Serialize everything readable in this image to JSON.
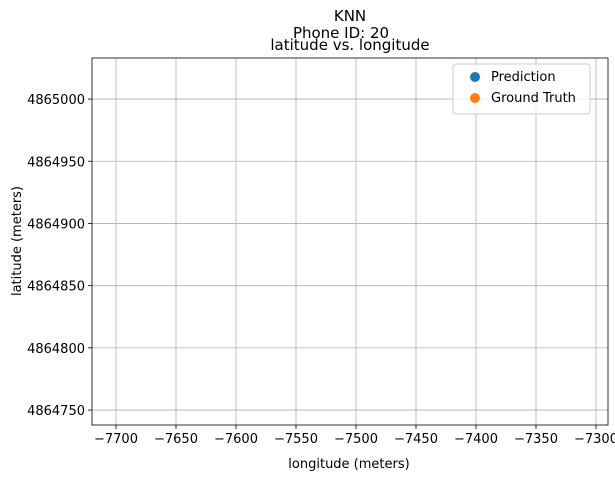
{
  "figure": {
    "suptitle_line1": "KNN",
    "suptitle_line2": "Phone ID: 20"
  },
  "chart_data": {
    "type": "scatter",
    "title": "latitude vs. longitude",
    "xlabel": "longitude (meters)",
    "ylabel": "latitude (meters)",
    "xlim": [
      -7720,
      -7290
    ],
    "ylim": [
      4864738,
      4865033
    ],
    "xticks": [
      -7700,
      -7650,
      -7600,
      -7550,
      -7500,
      -7450,
      -7400,
      -7350,
      -7300
    ],
    "xtick_labels": [
      "−7700",
      "−7650",
      "−7600",
      "−7550",
      "−7500",
      "−7450",
      "−7400",
      "−7350",
      "−7300"
    ],
    "yticks": [
      4864750,
      4864800,
      4864850,
      4864900,
      4864950,
      4865000
    ],
    "ytick_labels": [
      "4864750",
      "4864800",
      "4864850",
      "4864900",
      "4864950",
      "4865000"
    ],
    "grid": true,
    "legend_position": "top-right",
    "series": [
      {
        "name": "Prediction",
        "color": "#1f77b4",
        "points": []
      },
      {
        "name": "Ground Truth",
        "color": "#ff7f0e",
        "points": []
      }
    ]
  }
}
